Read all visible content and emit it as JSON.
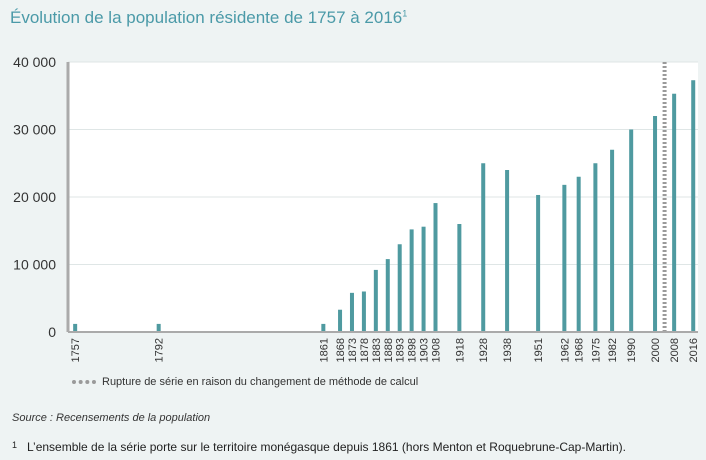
{
  "title": "Évolution de la population résidente de 1757 à 2016",
  "title_sup": "1",
  "legend_label": "Rupture de série en raison du changement de méthode de calcul",
  "source": "Source : Recensements de la population",
  "footnote_number": "1",
  "footnote_text": "L’ensemble de la série porte sur le territoire monégasque depuis 1861 (hors Menton et Roquebrune-Cap-Martin).",
  "colors": {
    "bar": "#4f9aa0",
    "axis": "#aaaaaa",
    "grid": "#ffffff",
    "background": "#ffffff",
    "break_line": "#9a9a9a"
  },
  "chart_data": {
    "type": "bar",
    "x": [
      1757,
      1792,
      1861,
      1868,
      1873,
      1878,
      1883,
      1888,
      1893,
      1898,
      1903,
      1908,
      1918,
      1928,
      1938,
      1951,
      1962,
      1968,
      1975,
      1982,
      1990,
      2000,
      2008,
      2016
    ],
    "x_labels": [
      "1757",
      "1792",
      "1861",
      "1868",
      "1873",
      "1878",
      "1883",
      "1888",
      "1893",
      "1898",
      "1903",
      "1908",
      "1918",
      "1928",
      "1938",
      "1951",
      "1962",
      "1968",
      "1975",
      "1982",
      "1990",
      "2000",
      "2008",
      "2016"
    ],
    "values": [
      1200,
      1200,
      1200,
      3300,
      5800,
      6000,
      9200,
      10800,
      13000,
      15200,
      15600,
      19100,
      16000,
      25000,
      24000,
      20300,
      21800,
      23000,
      25000,
      27000,
      30000,
      32000,
      35300,
      37300
    ],
    "ylim": [
      0,
      40000
    ],
    "yticks": [
      0,
      10000,
      20000,
      30000,
      40000
    ],
    "ytick_labels": [
      "0",
      "10 000",
      "20 000",
      "30 000",
      "40 000"
    ],
    "series_break_between": [
      2000,
      2008
    ],
    "grid": true,
    "legend_position": "bottom"
  }
}
